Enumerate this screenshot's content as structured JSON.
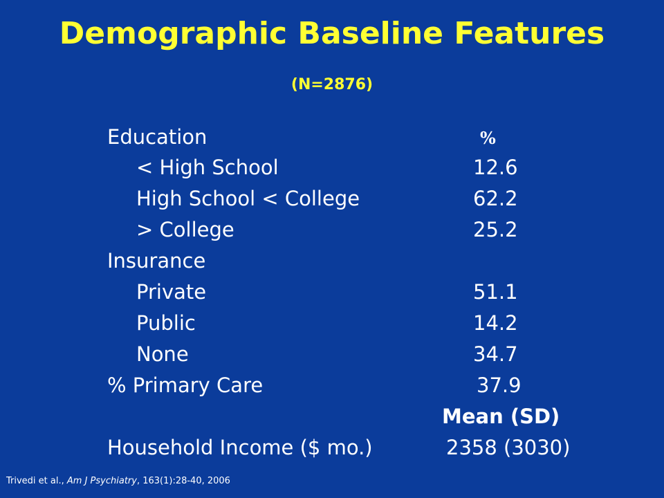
{
  "slide": {
    "title": "Demographic Baseline Features",
    "subtitle": "(N=2876)"
  },
  "education": {
    "heading": "Education",
    "percent_header": "%",
    "rows": [
      {
        "label": "< High School",
        "value": "12.6"
      },
      {
        "label": "High School < College",
        "value": "62.2"
      },
      {
        "label": "> College",
        "value": "25.2"
      }
    ]
  },
  "insurance": {
    "heading": "Insurance",
    "rows": [
      {
        "label": "Private",
        "value": "51.1"
      },
      {
        "label": "Public",
        "value": "14.2"
      },
      {
        "label": "None",
        "value": "34.7"
      }
    ]
  },
  "primary_care": {
    "label": "% Primary Care",
    "value": "37.9"
  },
  "income": {
    "column_header": "Mean (SD)",
    "label": "Household Income ($ mo.)",
    "value": "2358 (3030)"
  },
  "citation": {
    "authors": "Trivedi et al., ",
    "journal": "Am J Psychiatry",
    "details": ", 163(1):28-40, 2006"
  },
  "colors": {
    "background": "#0b3c9b",
    "title": "#ffff33",
    "body_text": "#ffffff"
  }
}
